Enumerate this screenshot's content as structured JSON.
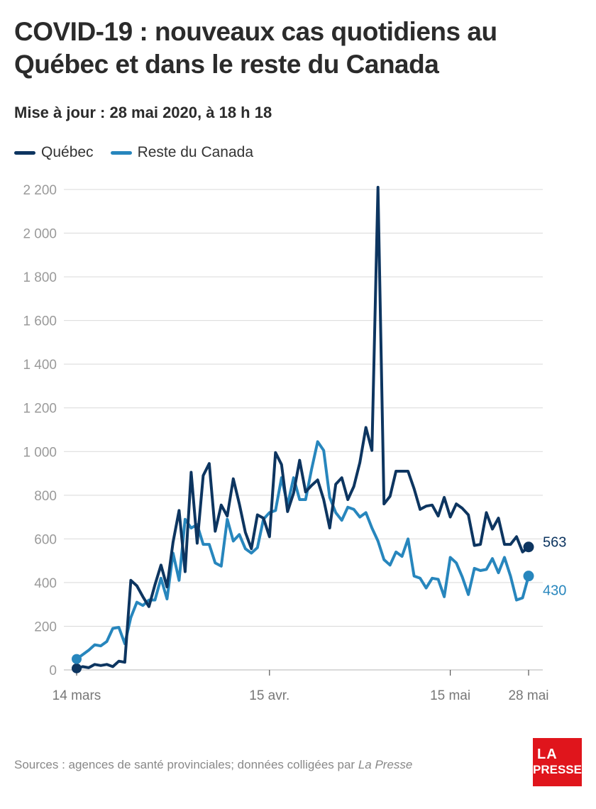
{
  "title": "COVID-19 : nouveaux cas quotidiens au Québec et dans le reste du Canada",
  "subtitle": "Mise à jour : 28 mai 2020, à 18 h 18",
  "source_prefix": "Sources : agences de santé provinciales; données colligées par ",
  "source_publication": "La Presse",
  "logo": {
    "line1": "LA",
    "line2": "PRESSE"
  },
  "colors": {
    "quebec": "#0d3560",
    "reste": "#2786bd",
    "grid": "#d9d9d9",
    "tick": "#9a9a9a",
    "background": "#ffffff",
    "logo": "#e0151c"
  },
  "chart_data": {
    "type": "line",
    "title": "COVID-19 : nouveaux cas quotidiens au Québec et dans le reste du Canada",
    "x_start": "2020-03-14",
    "x_ticks": [
      {
        "day": 0,
        "label": "14 mars"
      },
      {
        "day": 32,
        "label": "15 avr."
      },
      {
        "day": 62,
        "label": "15 mai"
      },
      {
        "day": 75,
        "label": "28 mai"
      }
    ],
    "y_ticks": [
      {
        "value": 0,
        "label": "0"
      },
      {
        "value": 200,
        "label": "200"
      },
      {
        "value": 400,
        "label": "400"
      },
      {
        "value": 600,
        "label": "600"
      },
      {
        "value": 800,
        "label": "800"
      },
      {
        "value": 1000,
        "label": "1 000"
      },
      {
        "value": 1200,
        "label": "1 200"
      },
      {
        "value": 1400,
        "label": "1 400"
      },
      {
        "value": 1600,
        "label": "1 600"
      },
      {
        "value": 1800,
        "label": "1 800"
      },
      {
        "value": 2000,
        "label": "2 000"
      },
      {
        "value": 2200,
        "label": "2 200"
      }
    ],
    "ylim": [
      0,
      2200
    ],
    "grid": true,
    "legend_position": "top-left",
    "series": [
      {
        "name": "Québec",
        "color": "#0d3560",
        "end_label": "563",
        "values": [
          7,
          15,
          10,
          25,
          20,
          25,
          15,
          40,
          35,
          410,
          385,
          335,
          290,
          390,
          480,
          380,
          585,
          730,
          450,
          905,
          580,
          890,
          945,
          635,
          755,
          705,
          875,
          760,
          630,
          555,
          710,
          695,
          610,
          995,
          940,
          725,
          810,
          960,
          815,
          845,
          870,
          780,
          650,
          850,
          880,
          780,
          840,
          950,
          1110,
          1005,
          2210,
          760,
          795,
          910,
          910,
          910,
          830,
          735,
          750,
          755,
          705,
          790,
          700,
          760,
          740,
          710,
          570,
          575,
          720,
          645,
          695,
          575,
          575,
          610,
          540,
          563
        ]
      },
      {
        "name": "Reste du Canada",
        "color": "#2786bd",
        "end_label": "430",
        "values": [
          50,
          70,
          90,
          115,
          110,
          130,
          190,
          195,
          120,
          240,
          310,
          295,
          320,
          320,
          420,
          325,
          535,
          410,
          690,
          650,
          665,
          575,
          575,
          490,
          475,
          690,
          590,
          620,
          555,
          535,
          560,
          690,
          720,
          730,
          880,
          755,
          880,
          780,
          780,
          920,
          1045,
          1005,
          790,
          720,
          685,
          745,
          735,
          700,
          720,
          650,
          590,
          505,
          480,
          540,
          520,
          600,
          430,
          420,
          375,
          420,
          415,
          335,
          515,
          490,
          425,
          345,
          465,
          455,
          460,
          510,
          445,
          515,
          430,
          320,
          330,
          430
        ]
      }
    ]
  }
}
